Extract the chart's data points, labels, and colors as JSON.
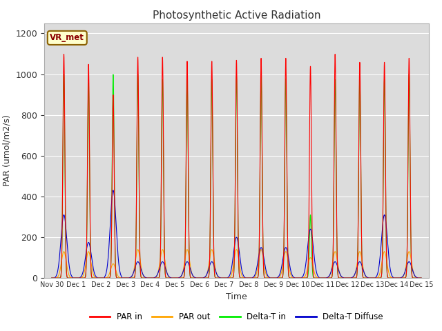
{
  "title": "Photosynthetic Active Radiation",
  "ylabel": "PAR (umol/m2/s)",
  "xlabel": "Time",
  "station_label": "VR_met",
  "ylim": [
    0,
    1250
  ],
  "yticks": [
    0,
    200,
    400,
    600,
    800,
    1000,
    1200
  ],
  "xtick_labels": [
    "Nov 30",
    "Dec 1",
    "Dec 2",
    "Dec 3",
    "Dec 4",
    "Dec 5",
    "Dec 6",
    "Dec 7",
    "Dec 8",
    "Dec 9",
    "Dec 10",
    "Dec 11",
    "Dec 12",
    "Dec 13",
    "Dec 14",
    "Dec 15"
  ],
  "xtick_positions": [
    0,
    1,
    2,
    3,
    4,
    5,
    6,
    7,
    8,
    9,
    10,
    11,
    12,
    13,
    14,
    15
  ],
  "colors": {
    "par_in": "#ff0000",
    "par_out": "#ffa500",
    "delta_t_in": "#00ee00",
    "delta_t_diffuse": "#0000cc"
  },
  "legend_labels": [
    "PAR in",
    "PAR out",
    "Delta-T in",
    "Delta-T Diffuse"
  ],
  "background_color": "#dcdcdc",
  "fig_background": "#ffffff",
  "par_in_peaks": [
    1100,
    1050,
    900,
    1085,
    1085,
    1065,
    1065,
    1070,
    1080,
    1080,
    1040,
    1100,
    1060,
    1060,
    1080,
    0
  ],
  "par_out_peaks": [
    130,
    130,
    70,
    140,
    140,
    140,
    140,
    140,
    140,
    130,
    100,
    130,
    130,
    130,
    130,
    0
  ],
  "delta_t_in_peaks": [
    1000,
    960,
    1000,
    1000,
    975,
    975,
    975,
    990,
    990,
    980,
    310,
    975,
    990,
    975,
    1000,
    0
  ],
  "delta_t_diffuse_peaks": [
    310,
    175,
    430,
    80,
    80,
    80,
    80,
    200,
    150,
    150,
    240,
    80,
    80,
    310,
    80,
    0
  ],
  "pts_per_day": 200,
  "days": 15,
  "spike_sigma": 0.04,
  "night_cutoff": 0.35
}
